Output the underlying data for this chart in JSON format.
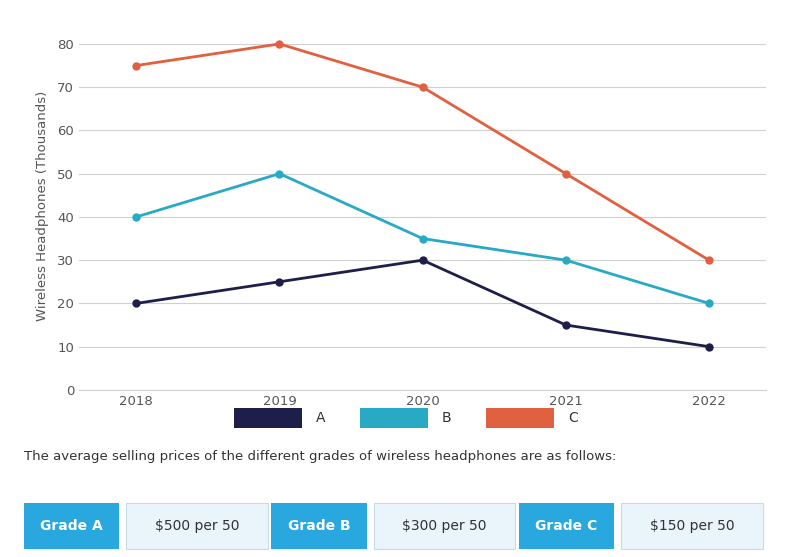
{
  "years": [
    2018,
    2019,
    2020,
    2021,
    2022
  ],
  "series_A": [
    20,
    25,
    30,
    15,
    10
  ],
  "series_B": [
    40,
    50,
    35,
    30,
    20
  ],
  "series_C": [
    75,
    80,
    70,
    50,
    30
  ],
  "color_A": "#1e1e4a",
  "color_B": "#29aac4",
  "color_C": "#e06040",
  "ylabel": "Wireless Headphones (Thousands)",
  "ylim": [
    0,
    85
  ],
  "yticks": [
    0,
    10,
    20,
    30,
    40,
    50,
    60,
    70,
    80
  ],
  "bg_color": "#ffffff",
  "grid_color": "#d0d0d0",
  "note_text": "The average selling prices of the different grades of wireless headphones are as follows:",
  "grade_labels": [
    "Grade A",
    "Grade B",
    "Grade C"
  ],
  "grade_prices": [
    "$500 per 50",
    "$300 per 50",
    "$150 per 50"
  ],
  "grade_btn_color": "#29a8e0",
  "grade_btn_text_color": "#ffffff",
  "grade_price_bg": "#eaf4fb",
  "grade_price_text_color": "#333333",
  "marker_size": 5,
  "line_width": 2.0,
  "note_fontsize": 9.5,
  "axis_fontsize": 9.5,
  "legend_fontsize": 10,
  "tick_fontsize": 9.5
}
